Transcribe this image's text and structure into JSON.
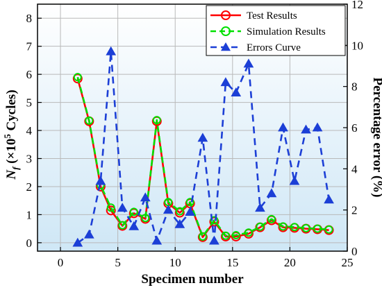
{
  "chart_data": {
    "type": "line",
    "xlabel": "Specimen number",
    "ylabel_left": "N_f (×10^5 Cycles)",
    "ylabel_left_parts": {
      "main": "N",
      "sub": "f",
      "pre": " (×10",
      "sup": "5",
      "post": " Cycles)"
    },
    "ylabel_right": "Percentage error (%)",
    "xlim": [
      -2,
      25
    ],
    "ylim_left": [
      -0.3,
      8.5
    ],
    "ylim_right": [
      0,
      12
    ],
    "xticks": [
      0,
      5,
      10,
      15,
      20,
      25
    ],
    "yticks_left": [
      0,
      1,
      2,
      3,
      4,
      5,
      6,
      7,
      8
    ],
    "yticks_right": [
      0,
      2,
      4,
      6,
      8,
      10,
      12
    ],
    "grid": true,
    "legend_position": "top-right",
    "background_gradient": [
      "#ffffff",
      "#cfe7f6"
    ],
    "series": [
      {
        "name": "Test Results",
        "axis": "left",
        "color": "#ff0000",
        "style": "solid-circle",
        "x": [
          1.5,
          2.5,
          3.5,
          4.4,
          5.4,
          6.4,
          7.4,
          8.4,
          9.4,
          10.4,
          11.3,
          12.4,
          13.4,
          14.4,
          15.3,
          16.4,
          17.4,
          18.4,
          19.4,
          20.4,
          21.4,
          22.4,
          23.4
        ],
        "values": [
          5.85,
          4.33,
          2.0,
          1.15,
          0.6,
          1.05,
          0.85,
          4.33,
          1.4,
          1.07,
          1.4,
          0.2,
          0.75,
          0.22,
          0.22,
          0.32,
          0.55,
          0.8,
          0.55,
          0.53,
          0.5,
          0.48,
          0.45
        ]
      },
      {
        "name": "Simulation Results",
        "axis": "left",
        "color": "#00e000",
        "style": "dashed-circle",
        "x": [
          1.5,
          2.5,
          3.5,
          4.4,
          5.4,
          6.4,
          7.4,
          8.4,
          9.4,
          10.4,
          11.3,
          12.4,
          13.4,
          14.4,
          15.3,
          16.4,
          17.4,
          18.4,
          19.4,
          20.4,
          21.4,
          22.4,
          23.4
        ],
        "values": [
          5.9,
          4.35,
          2.05,
          1.25,
          0.62,
          1.1,
          0.88,
          4.37,
          1.45,
          1.12,
          1.45,
          0.22,
          0.8,
          0.25,
          0.27,
          0.36,
          0.57,
          0.84,
          0.58,
          0.56,
          0.52,
          0.5,
          0.47
        ]
      },
      {
        "name": "Errors Curve",
        "axis": "right",
        "color": "#1c3fd6",
        "style": "dashed-triangle",
        "x": [
          1.5,
          2.5,
          3.5,
          4.4,
          5.4,
          6.4,
          7.4,
          8.4,
          9.4,
          10.4,
          11.3,
          12.4,
          13.4,
          14.4,
          15.3,
          16.4,
          17.4,
          18.4,
          19.4,
          20.4,
          21.4,
          22.4,
          23.4
        ],
        "values": [
          0.4,
          0.8,
          3.4,
          9.7,
          2.1,
          1.2,
          2.6,
          0.5,
          2.0,
          1.3,
          1.9,
          5.5,
          0.5,
          8.2,
          7.7,
          9.1,
          2.1,
          2.8,
          6.0,
          3.4,
          5.9,
          6.0,
          2.5
        ]
      }
    ]
  }
}
